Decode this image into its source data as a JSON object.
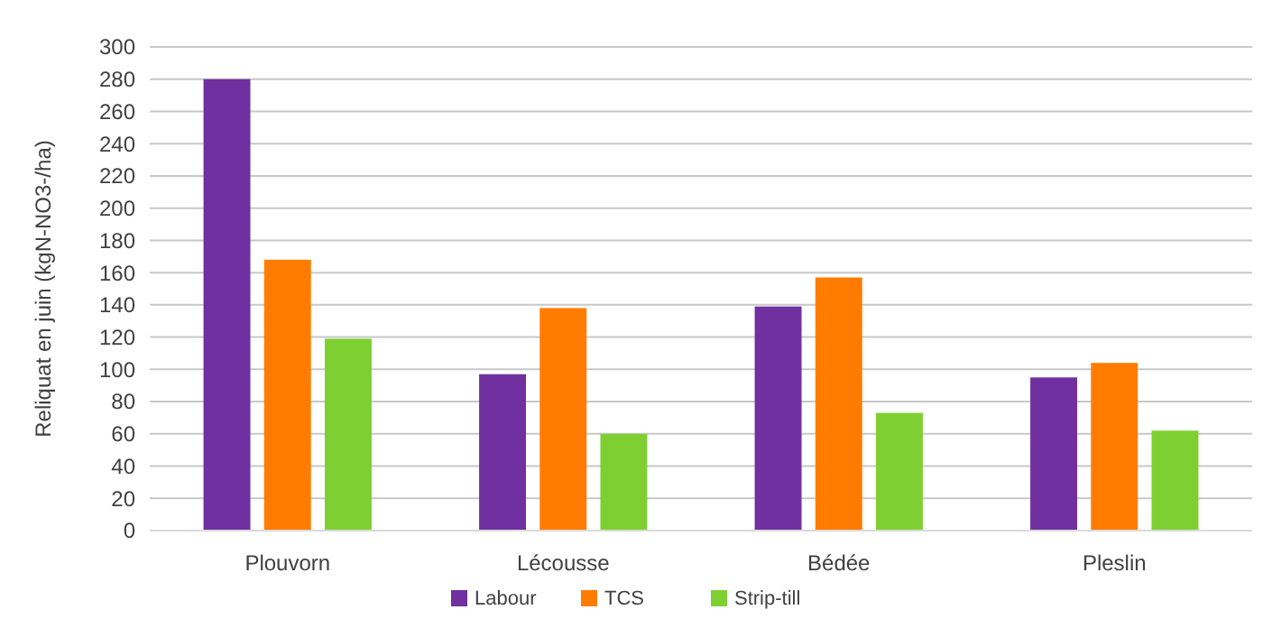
{
  "chart_data": {
    "type": "bar",
    "ylabel": "Reliquat en juin (kgN-NO3-/ha)",
    "categories": [
      "Plouvorn",
      "Lécousse",
      "Bédée",
      "Pleslin"
    ],
    "series": [
      {
        "name": "Labour",
        "color": "#7030a0",
        "values": [
          280,
          97,
          139,
          95
        ]
      },
      {
        "name": "TCS",
        "color": "#ff7c00",
        "values": [
          168,
          138,
          157,
          104
        ]
      },
      {
        "name": "Strip-till",
        "color": "#7ed032",
        "values": [
          119,
          60,
          73,
          62
        ]
      }
    ],
    "ylim": [
      0,
      300
    ],
    "yticks": [
      0,
      20,
      40,
      60,
      80,
      100,
      120,
      140,
      160,
      180,
      200,
      220,
      240,
      260,
      280,
      300
    ],
    "grid": "y",
    "legend": "bottom"
  }
}
